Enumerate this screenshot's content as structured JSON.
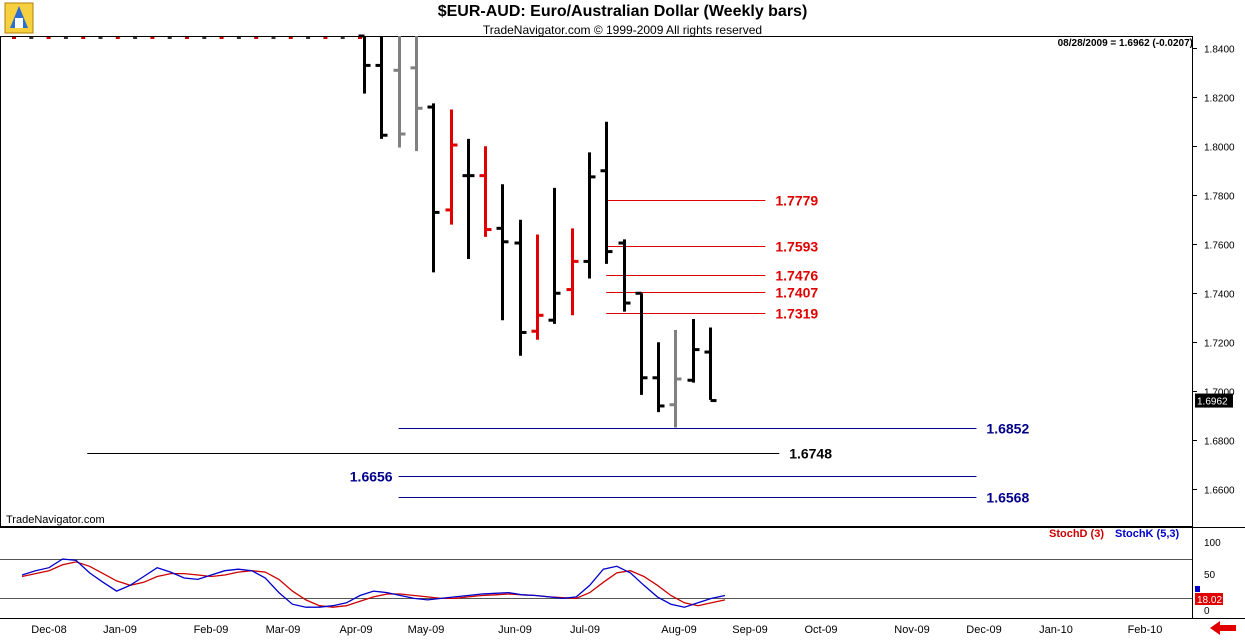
{
  "header": {
    "title": "$EUR-AUD:  Euro/Australian Dollar  (Weekly bars)",
    "subtitle": "TradeNavigator.com © 1999-2009 All rights reserved",
    "readout": "08/28/2009 = 1.6962 (-0.0207)"
  },
  "footer": {
    "watermark": "TradeNavigator.com"
  },
  "colors": {
    "up": "#000000",
    "down": "#000000",
    "red": "#e00000",
    "gray": "#808080",
    "blue_line": "#00008b",
    "red_line": "#e00000",
    "stochD": "#cc0000",
    "stochK": "#0000cc"
  },
  "chart_data": {
    "type": "ohlc",
    "ylim": [
      1.645,
      1.845
    ],
    "y_ticks": [
      "1.8400",
      "1.8200",
      "1.8000",
      "1.7800",
      "1.7600",
      "1.7400",
      "1.7200",
      "1.7000",
      "1.6800",
      "1.6600"
    ],
    "x_ticks": [
      "Dec-08",
      "Jan-09",
      "Feb-09",
      "Mar-09",
      "Apr-09",
      "May-09",
      "Jun-09",
      "Jul-09",
      "Aug-09",
      "Sep-09",
      "Oct-09",
      "Nov-09",
      "Dec-09",
      "Jan-10",
      "Feb-10"
    ],
    "last_price": "1.6962",
    "bars": [
      {
        "o": 1.845,
        "h": 1.845,
        "l": 1.8215,
        "c": 1.833,
        "color": "black"
      },
      {
        "o": 1.833,
        "h": 1.845,
        "l": 1.803,
        "c": 1.8045,
        "color": "black"
      },
      {
        "o": 1.831,
        "h": 1.845,
        "l": 1.7995,
        "c": 1.805,
        "color": "gray"
      },
      {
        "o": 1.832,
        "h": 1.845,
        "l": 1.798,
        "c": 1.8155,
        "color": "gray"
      },
      {
        "o": 1.816,
        "h": 1.8175,
        "l": 1.7485,
        "c": 1.773,
        "color": "black"
      },
      {
        "o": 1.774,
        "h": 1.815,
        "l": 1.768,
        "c": 1.8005,
        "color": "red"
      },
      {
        "o": 1.788,
        "h": 1.803,
        "l": 1.754,
        "c": 1.788,
        "color": "black"
      },
      {
        "o": 1.788,
        "h": 1.8,
        "l": 1.763,
        "c": 1.766,
        "color": "red"
      },
      {
        "o": 1.7665,
        "h": 1.7845,
        "l": 1.729,
        "c": 1.761,
        "color": "black"
      },
      {
        "o": 1.7605,
        "h": 1.77,
        "l": 1.7145,
        "c": 1.724,
        "color": "black"
      },
      {
        "o": 1.7245,
        "h": 1.764,
        "l": 1.721,
        "c": 1.731,
        "color": "red"
      },
      {
        "o": 1.729,
        "h": 1.783,
        "l": 1.7275,
        "c": 1.74,
        "color": "black"
      },
      {
        "o": 1.7415,
        "h": 1.7665,
        "l": 1.731,
        "c": 1.753,
        "color": "red"
      },
      {
        "o": 1.753,
        "h": 1.7975,
        "l": 1.746,
        "c": 1.7875,
        "color": "black"
      },
      {
        "o": 1.79,
        "h": 1.81,
        "l": 1.752,
        "c": 1.757,
        "color": "black"
      },
      {
        "o": 1.7605,
        "h": 1.762,
        "l": 1.7325,
        "c": 1.736,
        "color": "black"
      },
      {
        "o": 1.74,
        "h": 1.74,
        "l": 1.6985,
        "c": 1.7055,
        "color": "black"
      },
      {
        "o": 1.7055,
        "h": 1.72,
        "l": 1.6915,
        "c": 1.694,
        "color": "black"
      },
      {
        "o": 1.6945,
        "h": 1.725,
        "l": 1.6852,
        "c": 1.705,
        "color": "gray"
      },
      {
        "o": 1.7045,
        "h": 1.7295,
        "l": 1.7035,
        "c": 1.717,
        "color": "black"
      },
      {
        "o": 1.716,
        "h": 1.726,
        "l": 1.6965,
        "c": 1.6962,
        "color": "black"
      }
    ],
    "levels": [
      {
        "price": 1.7779,
        "label": "1.7779",
        "color": "red",
        "from_bar": 14,
        "to_bar": 23.2
      },
      {
        "price": 1.7593,
        "label": "1.7593",
        "color": "red",
        "from_bar": 14,
        "to_bar": 23.2
      },
      {
        "price": 1.7476,
        "label": "1.7476",
        "color": "red",
        "from_bar": 14,
        "to_bar": 23.2
      },
      {
        "price": 1.7407,
        "label": "1.7407",
        "color": "red",
        "from_bar": 14,
        "to_bar": 23.2
      },
      {
        "price": 1.7319,
        "label": "1.7319",
        "color": "red",
        "from_bar": 14,
        "to_bar": 23.2
      },
      {
        "price": 1.6852,
        "label": "1.6852",
        "color": "blue",
        "from_bar": 2,
        "to_bar": 35.4
      },
      {
        "price": 1.6748,
        "label": "1.6748",
        "color": "black",
        "from_bar": -16,
        "to_bar": 24
      },
      {
        "price": 1.6656,
        "label": "1.6656",
        "color": "blue",
        "from_bar": 2,
        "to_bar": 35.4
      },
      {
        "price": 1.6568,
        "label": "1.6568",
        "color": "blue",
        "from_bar": 2,
        "to_bar": 35.4
      }
    ],
    "indicator": {
      "legend": [
        "StochD (3)",
        "StochK (5,3)"
      ],
      "y_ticks": [
        "100",
        "50",
        "0"
      ],
      "last_value": "18.02",
      "stochK": [
        52,
        58,
        62,
        74,
        72,
        55,
        42,
        30,
        38,
        50,
        62,
        56,
        48,
        46,
        52,
        58,
        60,
        58,
        48,
        28,
        12,
        8,
        8,
        10,
        14,
        24,
        30,
        28,
        24,
        20,
        18,
        20,
        22,
        24,
        26,
        27,
        28,
        25,
        24,
        22,
        20,
        22,
        38,
        60,
        64,
        55,
        38,
        22,
        12,
        8,
        14,
        20,
        24
      ],
      "stochD": [
        50,
        54,
        58,
        66,
        70,
        64,
        54,
        44,
        38,
        42,
        50,
        54,
        54,
        52,
        50,
        52,
        56,
        58,
        56,
        46,
        30,
        18,
        10,
        8,
        10,
        16,
        22,
        26,
        26,
        24,
        22,
        20,
        20,
        22,
        24,
        25,
        26,
        25,
        24,
        22,
        21,
        20,
        28,
        42,
        55,
        58,
        50,
        38,
        24,
        14,
        10,
        14,
        18
      ]
    }
  }
}
